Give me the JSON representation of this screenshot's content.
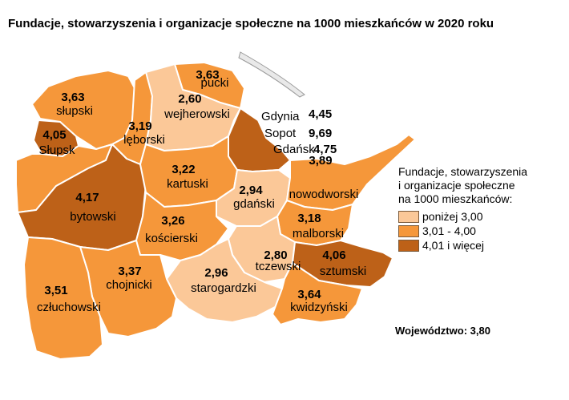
{
  "title": "Fundacje, stowarzyszenia i organizacje społeczne na 1000 mieszkańców w 2020 roku",
  "colors": {
    "low": "#fbc898",
    "mid": "#f5973a",
    "high": "#bd6118",
    "border": "#ffffff",
    "water": "#e9e9e9"
  },
  "counties": [
    {
      "id": "pucki",
      "name": "pucki",
      "value": "3,63",
      "class": "mid"
    },
    {
      "id": "wejherowski",
      "name": "wejherowski",
      "value": "2,60",
      "class": "low"
    },
    {
      "id": "slupski",
      "name": "słupski",
      "value": "3,63",
      "class": "mid"
    },
    {
      "id": "slupsk",
      "name": "Słupsk",
      "value": "4,05",
      "class": "high"
    },
    {
      "id": "leborski",
      "name": "lęborski",
      "value": "3,19",
      "class": "mid"
    },
    {
      "id": "bytowski",
      "name": "bytowski",
      "value": "4,17",
      "class": "high"
    },
    {
      "id": "kartuski",
      "name": "kartuski",
      "value": "3,22",
      "class": "mid"
    },
    {
      "id": "koscierski",
      "name": "kościerski",
      "value": "3,26",
      "class": "mid"
    },
    {
      "id": "chojnicki",
      "name": "chojnicki",
      "value": "3,37",
      "class": "mid"
    },
    {
      "id": "czluchowski",
      "name": "człuchowski",
      "value": "3,51",
      "class": "mid"
    },
    {
      "id": "starogardzki",
      "name": "starogardzki",
      "value": "2,96",
      "class": "low"
    },
    {
      "id": "gdanski",
      "name": "gdański",
      "value": "2,94",
      "class": "low"
    },
    {
      "id": "tczewski",
      "name": "tczewski",
      "value": "2,80",
      "class": "low"
    },
    {
      "id": "nowodworski",
      "name": "nowodworski",
      "value": "3,89",
      "class": "mid"
    },
    {
      "id": "malborski",
      "name": "malborski",
      "value": "3,18",
      "class": "mid"
    },
    {
      "id": "sztumski",
      "name": "sztumski",
      "value": "4,06",
      "class": "high"
    },
    {
      "id": "kwidzynski",
      "name": "kwidzyński",
      "value": "3,64",
      "class": "mid"
    }
  ],
  "cities": [
    {
      "name": "Gdynia",
      "value": "4,45"
    },
    {
      "name": "Sopot",
      "value": "9,69"
    },
    {
      "name": "Gdańsk",
      "value": "4,75"
    }
  ],
  "legend": {
    "title_lines": [
      "Fundacje, stowarzyszenia",
      "i organizacje społeczne",
      "na 1000 mieszkańców:"
    ],
    "items": [
      {
        "label": "poniżej 3,00",
        "class": "low"
      },
      {
        "label": "3,01 - 4,00",
        "class": "mid"
      },
      {
        "label": "4,01 i więcej",
        "class": "high"
      }
    ]
  },
  "voivodeship": "Województwo: 3,80"
}
